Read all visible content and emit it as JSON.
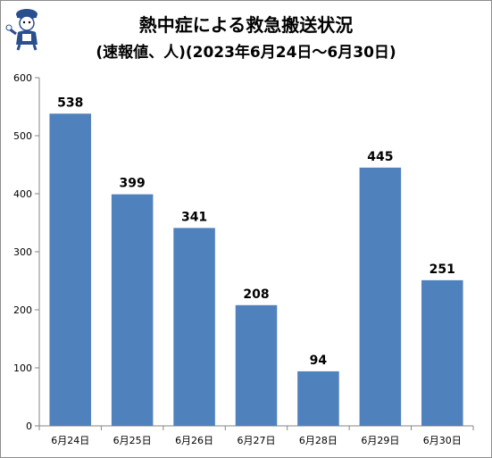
{
  "chart_data": {
    "type": "bar",
    "title": "熱中症による救急搬送状況",
    "subtitle": "(速報値、人)(2023年6月24日〜6月30日)",
    "categories": [
      "6月24日",
      "6月25日",
      "6月26日",
      "6月27日",
      "6月28日",
      "6月29日",
      "6月30日"
    ],
    "values": [
      538,
      399,
      341,
      208,
      94,
      445,
      251
    ],
    "ylim": [
      0,
      600
    ],
    "yticks": [
      0,
      100,
      200,
      300,
      400,
      500,
      600
    ],
    "xlabel": "",
    "ylabel": "",
    "grid": false,
    "legend": "none",
    "bar_color": "#4f81bd"
  },
  "mascot_icon": "mascot-character-icon"
}
